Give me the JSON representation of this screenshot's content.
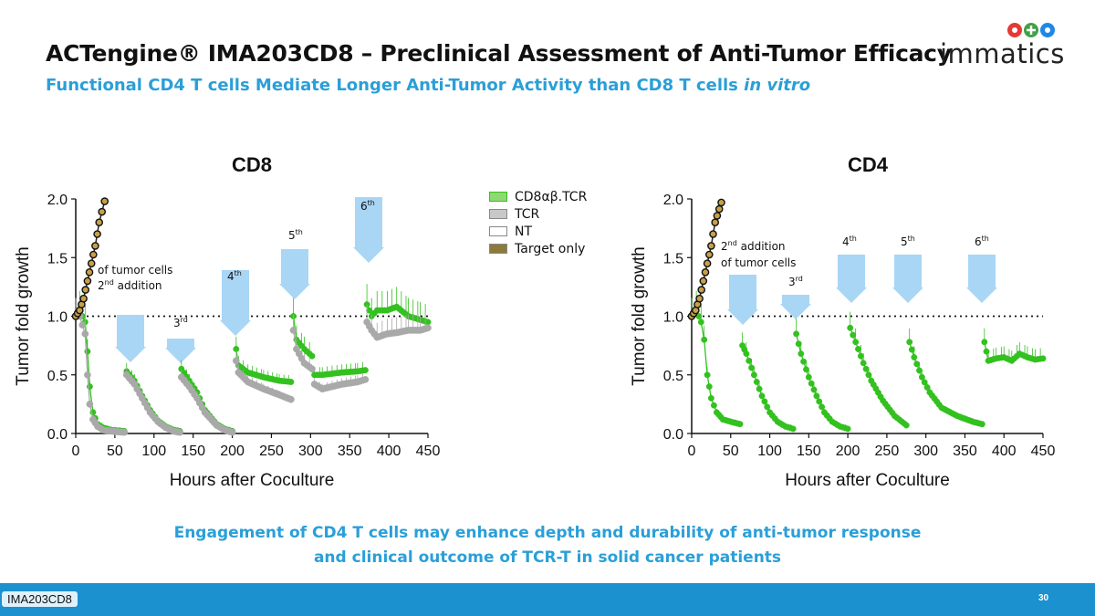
{
  "header": {
    "title": "ACTengine® IMA203CD8 – Preclinical Assessment of Anti-Tumor Efficacy",
    "subtitle_main": "Functional CD4 T cells Mediate Longer Anti-Tumor Activity than CD8 T cells ",
    "subtitle_italic": "in vitro",
    "logo_text": "immatics"
  },
  "legend": {
    "items": [
      {
        "label": "CD8αβ.TCR",
        "color": "#8fd873"
      },
      {
        "label": "TCR",
        "color": "#c8c8c8"
      },
      {
        "label": "NT",
        "color": "#ffffff"
      },
      {
        "label": "Target only",
        "color": "#8b7a3a"
      }
    ]
  },
  "colors": {
    "cd8ab_tcr": "#33c11f",
    "tcr": "#a9a9a9",
    "target_only": "#c8a048",
    "arrow": "#a9d6f5",
    "accent": "#2a9fd8"
  },
  "chart_data": [
    {
      "type": "line",
      "title": "CD8",
      "xlabel": "Hours after Coculture",
      "ylabel": "Tumor fold growth",
      "xlim": [
        0,
        450
      ],
      "ylim": [
        0,
        2.0
      ],
      "x_ticks": [
        "0",
        "50",
        "100",
        "150",
        "200",
        "250",
        "300",
        "350",
        "400",
        "450"
      ],
      "y_ticks": [
        "0.0",
        "0.5",
        "1.0",
        "1.5",
        "2.0"
      ],
      "reference_line_y": 1.0,
      "series": [
        {
          "name": "CD8αβ.TCR",
          "segments": [
            [
              [
                0,
                1.0
              ],
              [
                5,
                1.05
              ],
              [
                12,
                0.95
              ],
              [
                15,
                0.7
              ],
              [
                18,
                0.4
              ],
              [
                22,
                0.18
              ],
              [
                28,
                0.08
              ],
              [
                35,
                0.05
              ],
              [
                45,
                0.03
              ],
              [
                62,
                0.02
              ]
            ],
            [
              [
                65,
                0.53
              ],
              [
                75,
                0.45
              ],
              [
                85,
                0.32
              ],
              [
                95,
                0.2
              ],
              [
                105,
                0.11
              ],
              [
                115,
                0.06
              ],
              [
                125,
                0.03
              ],
              [
                133,
                0.02
              ]
            ],
            [
              [
                135,
                0.55
              ],
              [
                145,
                0.45
              ],
              [
                155,
                0.35
              ],
              [
                165,
                0.2
              ],
              [
                180,
                0.08
              ],
              [
                190,
                0.04
              ],
              [
                200,
                0.02
              ]
            ],
            [
              [
                205,
                0.72
              ],
              [
                208,
                0.58
              ],
              [
                220,
                0.52
              ],
              [
                240,
                0.48
              ],
              [
                260,
                0.45
              ],
              [
                275,
                0.44
              ]
            ],
            [
              [
                278,
                1.0
              ],
              [
                282,
                0.8
              ],
              [
                292,
                0.72
              ],
              [
                302,
                0.66
              ]
            ],
            [
              [
                305,
                0.5
              ],
              [
                315,
                0.5
              ],
              [
                340,
                0.52
              ],
              [
                360,
                0.53
              ],
              [
                370,
                0.54
              ]
            ],
            [
              [
                372,
                1.1
              ],
              [
                378,
                1.0
              ],
              [
                385,
                1.05
              ],
              [
                398,
                1.05
              ],
              [
                410,
                1.08
              ],
              [
                425,
                1.0
              ],
              [
                440,
                0.97
              ],
              [
                450,
                0.95
              ]
            ]
          ]
        },
        {
          "name": "TCR",
          "segments": [
            [
              [
                0,
                1.0
              ],
              [
                5,
                1.0
              ],
              [
                12,
                0.85
              ],
              [
                15,
                0.5
              ],
              [
                18,
                0.25
              ],
              [
                22,
                0.12
              ],
              [
                28,
                0.06
              ],
              [
                35,
                0.03
              ],
              [
                45,
                0.02
              ],
              [
                62,
                0.01
              ]
            ],
            [
              [
                65,
                0.5
              ],
              [
                75,
                0.42
              ],
              [
                85,
                0.3
              ],
              [
                95,
                0.18
              ],
              [
                105,
                0.1
              ],
              [
                115,
                0.05
              ],
              [
                125,
                0.02
              ],
              [
                133,
                0.01
              ]
            ],
            [
              [
                135,
                0.48
              ],
              [
                145,
                0.4
              ],
              [
                155,
                0.3
              ],
              [
                165,
                0.18
              ],
              [
                180,
                0.07
              ],
              [
                190,
                0.03
              ],
              [
                200,
                0.01
              ]
            ],
            [
              [
                205,
                0.62
              ],
              [
                208,
                0.52
              ],
              [
                220,
                0.44
              ],
              [
                240,
                0.38
              ],
              [
                260,
                0.33
              ],
              [
                275,
                0.29
              ]
            ],
            [
              [
                278,
                0.88
              ],
              [
                282,
                0.72
              ],
              [
                292,
                0.6
              ],
              [
                302,
                0.55
              ]
            ],
            [
              [
                305,
                0.42
              ],
              [
                315,
                0.38
              ],
              [
                340,
                0.42
              ],
              [
                360,
                0.44
              ],
              [
                370,
                0.46
              ]
            ],
            [
              [
                372,
                0.95
              ],
              [
                378,
                0.88
              ],
              [
                385,
                0.82
              ],
              [
                398,
                0.85
              ],
              [
                410,
                0.86
              ],
              [
                425,
                0.88
              ],
              [
                440,
                0.88
              ],
              [
                450,
                0.9
              ]
            ]
          ]
        },
        {
          "name": "Target only",
          "segments": [
            [
              [
                0,
                1.0
              ],
              [
                5,
                1.05
              ],
              [
                10,
                1.15
              ],
              [
                15,
                1.3
              ],
              [
                20,
                1.45
              ],
              [
                25,
                1.6
              ],
              [
                30,
                1.8
              ],
              [
                37,
                1.98
              ]
            ]
          ]
        }
      ],
      "annotations": [
        {
          "text": "2nd addition",
          "text2": "of tumor cells",
          "x": 67
        },
        {
          "text": "3rd",
          "x": 136
        },
        {
          "text": "4th",
          "x": 205
        },
        {
          "text": "5th",
          "x": 280
        },
        {
          "text": "6th",
          "x": 373
        }
      ]
    },
    {
      "type": "line",
      "title": "CD4",
      "xlabel": "Hours after Coculture",
      "ylabel": "Tumor fold growth",
      "xlim": [
        0,
        450
      ],
      "ylim": [
        0,
        2.0
      ],
      "x_ticks": [
        "0",
        "50",
        "100",
        "150",
        "200",
        "250",
        "300",
        "350",
        "400",
        "450"
      ],
      "y_ticks": [
        "0.0",
        "0.5",
        "1.0",
        "1.5",
        "2.0"
      ],
      "reference_line_y": 1.0,
      "series": [
        {
          "name": "CD8αβ.TCR",
          "segments": [
            [
              [
                0,
                1.0
              ],
              [
                6,
                1.05
              ],
              [
                12,
                0.95
              ],
              [
                16,
                0.8
              ],
              [
                20,
                0.5
              ],
              [
                25,
                0.3
              ],
              [
                32,
                0.18
              ],
              [
                40,
                0.12
              ],
              [
                50,
                0.1
              ],
              [
                62,
                0.08
              ]
            ],
            [
              [
                65,
                0.75
              ],
              [
                70,
                0.68
              ],
              [
                80,
                0.5
              ],
              [
                90,
                0.32
              ],
              [
                100,
                0.18
              ],
              [
                110,
                0.1
              ],
              [
                120,
                0.06
              ],
              [
                130,
                0.04
              ]
            ],
            [
              [
                134,
                0.85
              ],
              [
                140,
                0.68
              ],
              [
                150,
                0.48
              ],
              [
                160,
                0.32
              ],
              [
                170,
                0.18
              ],
              [
                180,
                0.1
              ],
              [
                190,
                0.06
              ],
              [
                200,
                0.04
              ]
            ],
            [
              [
                203,
                0.9
              ],
              [
                210,
                0.78
              ],
              [
                220,
                0.6
              ],
              [
                230,
                0.45
              ],
              [
                245,
                0.28
              ],
              [
                260,
                0.15
              ],
              [
                275,
                0.07
              ]
            ],
            [
              [
                279,
                0.78
              ],
              [
                285,
                0.65
              ],
              [
                295,
                0.48
              ],
              [
                305,
                0.35
              ],
              [
                320,
                0.22
              ],
              [
                340,
                0.15
              ],
              [
                360,
                0.1
              ],
              [
                372,
                0.08
              ]
            ],
            [
              [
                375,
                0.78
              ],
              [
                380,
                0.62
              ],
              [
                390,
                0.64
              ],
              [
                400,
                0.65
              ],
              [
                410,
                0.62
              ],
              [
                420,
                0.68
              ],
              [
                430,
                0.65
              ],
              [
                440,
                0.63
              ],
              [
                450,
                0.64
              ]
            ]
          ]
        },
        {
          "name": "Target only",
          "segments": [
            [
              [
                0,
                1.0
              ],
              [
                5,
                1.05
              ],
              [
                10,
                1.15
              ],
              [
                15,
                1.3
              ],
              [
                20,
                1.45
              ],
              [
                25,
                1.6
              ],
              [
                30,
                1.8
              ],
              [
                38,
                1.97
              ]
            ]
          ]
        }
      ],
      "annotations": [
        {
          "text": "2nd addition",
          "text2": "of tumor cells",
          "x": 65
        },
        {
          "text": "3rd",
          "x": 134
        },
        {
          "text": "4th",
          "x": 203
        },
        {
          "text": "5th",
          "x": 279
        },
        {
          "text": "6th",
          "x": 375
        }
      ]
    }
  ],
  "bottom": {
    "line1": "Engagement of CD4 T cells may enhance depth and durability of anti-tumor response",
    "line2": "and clinical outcome of TCR-T in solid cancer patients"
  },
  "footer": {
    "tag": "IMA203CD8",
    "page": "30"
  }
}
